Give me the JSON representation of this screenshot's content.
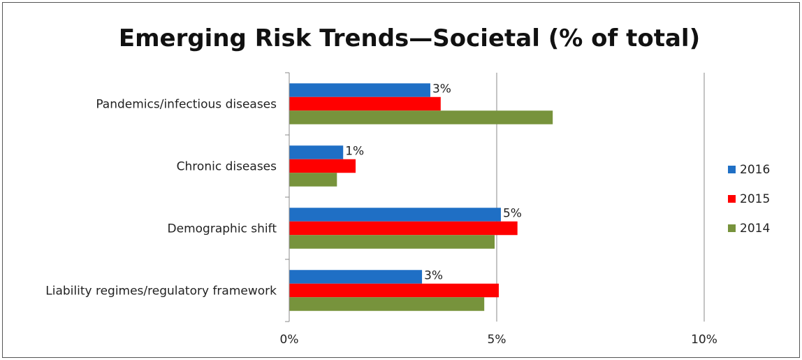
{
  "chart_data": {
    "type": "bar",
    "orientation": "horizontal",
    "title": "Emerging Risk Trends—Societal (% of total)",
    "xlabel": "",
    "ylabel": "",
    "categories": [
      "Pandemics/infectious diseases",
      "Chronic diseases",
      "Demographic shift",
      "Liability regimes/regulatory framework"
    ],
    "series": [
      {
        "name": "2016",
        "color": "#1F6FC5",
        "values": [
          3.4,
          1.3,
          5.1,
          3.2
        ]
      },
      {
        "name": "2015",
        "color": "#FF0000",
        "values": [
          3.65,
          1.6,
          5.5,
          5.05
        ]
      },
      {
        "name": "2014",
        "color": "#77933C",
        "values": [
          6.35,
          1.15,
          4.95,
          4.7
        ]
      }
    ],
    "data_labels": [
      "3%",
      "1%",
      "5%",
      "3%"
    ],
    "x_ticks": [
      0,
      5,
      10
    ],
    "x_tick_labels": [
      "0%",
      "5%",
      "10%"
    ],
    "xlim": [
      0,
      10
    ],
    "grid": "vertical major gridlines",
    "legend_position": "right",
    "legend_order": [
      "2016",
      "2015",
      "2014"
    ]
  }
}
